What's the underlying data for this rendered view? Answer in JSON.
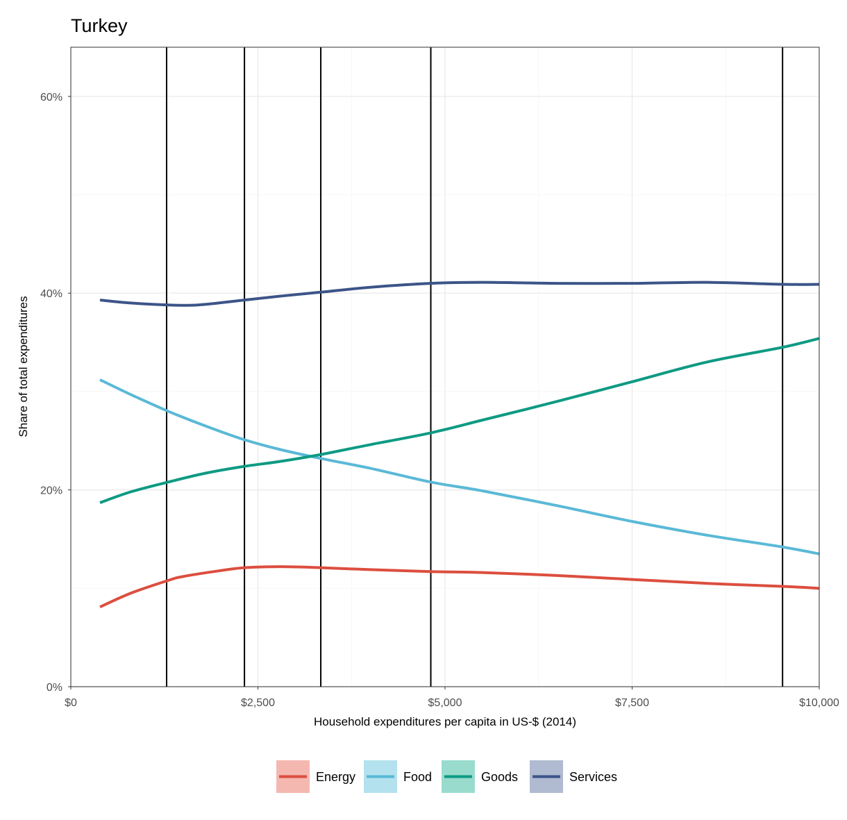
{
  "chart_data": {
    "type": "line",
    "title": "Turkey",
    "xlabel": "Household expenditures per capita in US-$ (2014)",
    "ylabel": "Share of total expenditures",
    "xlim": [
      0,
      10000
    ],
    "ylim": [
      0,
      0.65
    ],
    "x_ticks": [
      {
        "value": 0,
        "label": "$0"
      },
      {
        "value": 2500,
        "label": "$2,500"
      },
      {
        "value": 5000,
        "label": "$5,000"
      },
      {
        "value": 7500,
        "label": "$7,500"
      },
      {
        "value": 10000,
        "label": "$10,000"
      }
    ],
    "y_ticks": [
      {
        "value": 0,
        "label": "0%"
      },
      {
        "value": 0.2,
        "label": "20%"
      },
      {
        "value": 0.4,
        "label": "40%"
      },
      {
        "value": 0.6,
        "label": "60%"
      }
    ],
    "vertical_lines": [
      1280,
      2320,
      3340,
      4810,
      9510
    ],
    "legend_position": "bottom",
    "series": [
      {
        "name": "Energy",
        "color": "#dc4e3f",
        "legend_fill": "#f4b8b1",
        "x": [
          390,
          800,
          1300,
          1500,
          2000,
          2320,
          2800,
          3340,
          4000,
          4810,
          5500,
          6500,
          7500,
          8500,
          9510,
          10000
        ],
        "y": [
          0.081,
          0.095,
          0.108,
          0.112,
          0.118,
          0.121,
          0.122,
          0.121,
          0.119,
          0.117,
          0.116,
          0.113,
          0.109,
          0.105,
          0.102,
          0.1
        ]
      },
      {
        "name": "Food",
        "color": "#5ab9d6",
        "legend_fill": "#b3e2ee",
        "x": [
          390,
          800,
          1300,
          1800,
          2320,
          2800,
          3340,
          4000,
          4810,
          5500,
          6500,
          7500,
          8500,
          9510,
          10000
        ],
        "y": [
          0.312,
          0.297,
          0.28,
          0.265,
          0.251,
          0.241,
          0.232,
          0.222,
          0.208,
          0.199,
          0.184,
          0.168,
          0.154,
          0.142,
          0.135
        ]
      },
      {
        "name": "Goods",
        "color": "#0e9a83",
        "legend_fill": "#99dccd",
        "x": [
          390,
          800,
          1300,
          1800,
          2320,
          2800,
          3340,
          4000,
          4810,
          5500,
          6500,
          7500,
          8500,
          9510,
          10000
        ],
        "y": [
          0.187,
          0.198,
          0.208,
          0.217,
          0.224,
          0.229,
          0.236,
          0.246,
          0.258,
          0.271,
          0.29,
          0.31,
          0.33,
          0.345,
          0.354
        ]
      },
      {
        "name": "Services",
        "color": "#3c5488",
        "legend_fill": "#b0bad0",
        "x": [
          390,
          800,
          1300,
          1700,
          2320,
          2800,
          3340,
          4000,
          4810,
          5500,
          6500,
          7500,
          8500,
          9510,
          10000
        ],
        "y": [
          0.393,
          0.39,
          0.388,
          0.388,
          0.393,
          0.397,
          0.401,
          0.406,
          0.41,
          0.411,
          0.41,
          0.41,
          0.411,
          0.409,
          0.409
        ]
      }
    ]
  }
}
